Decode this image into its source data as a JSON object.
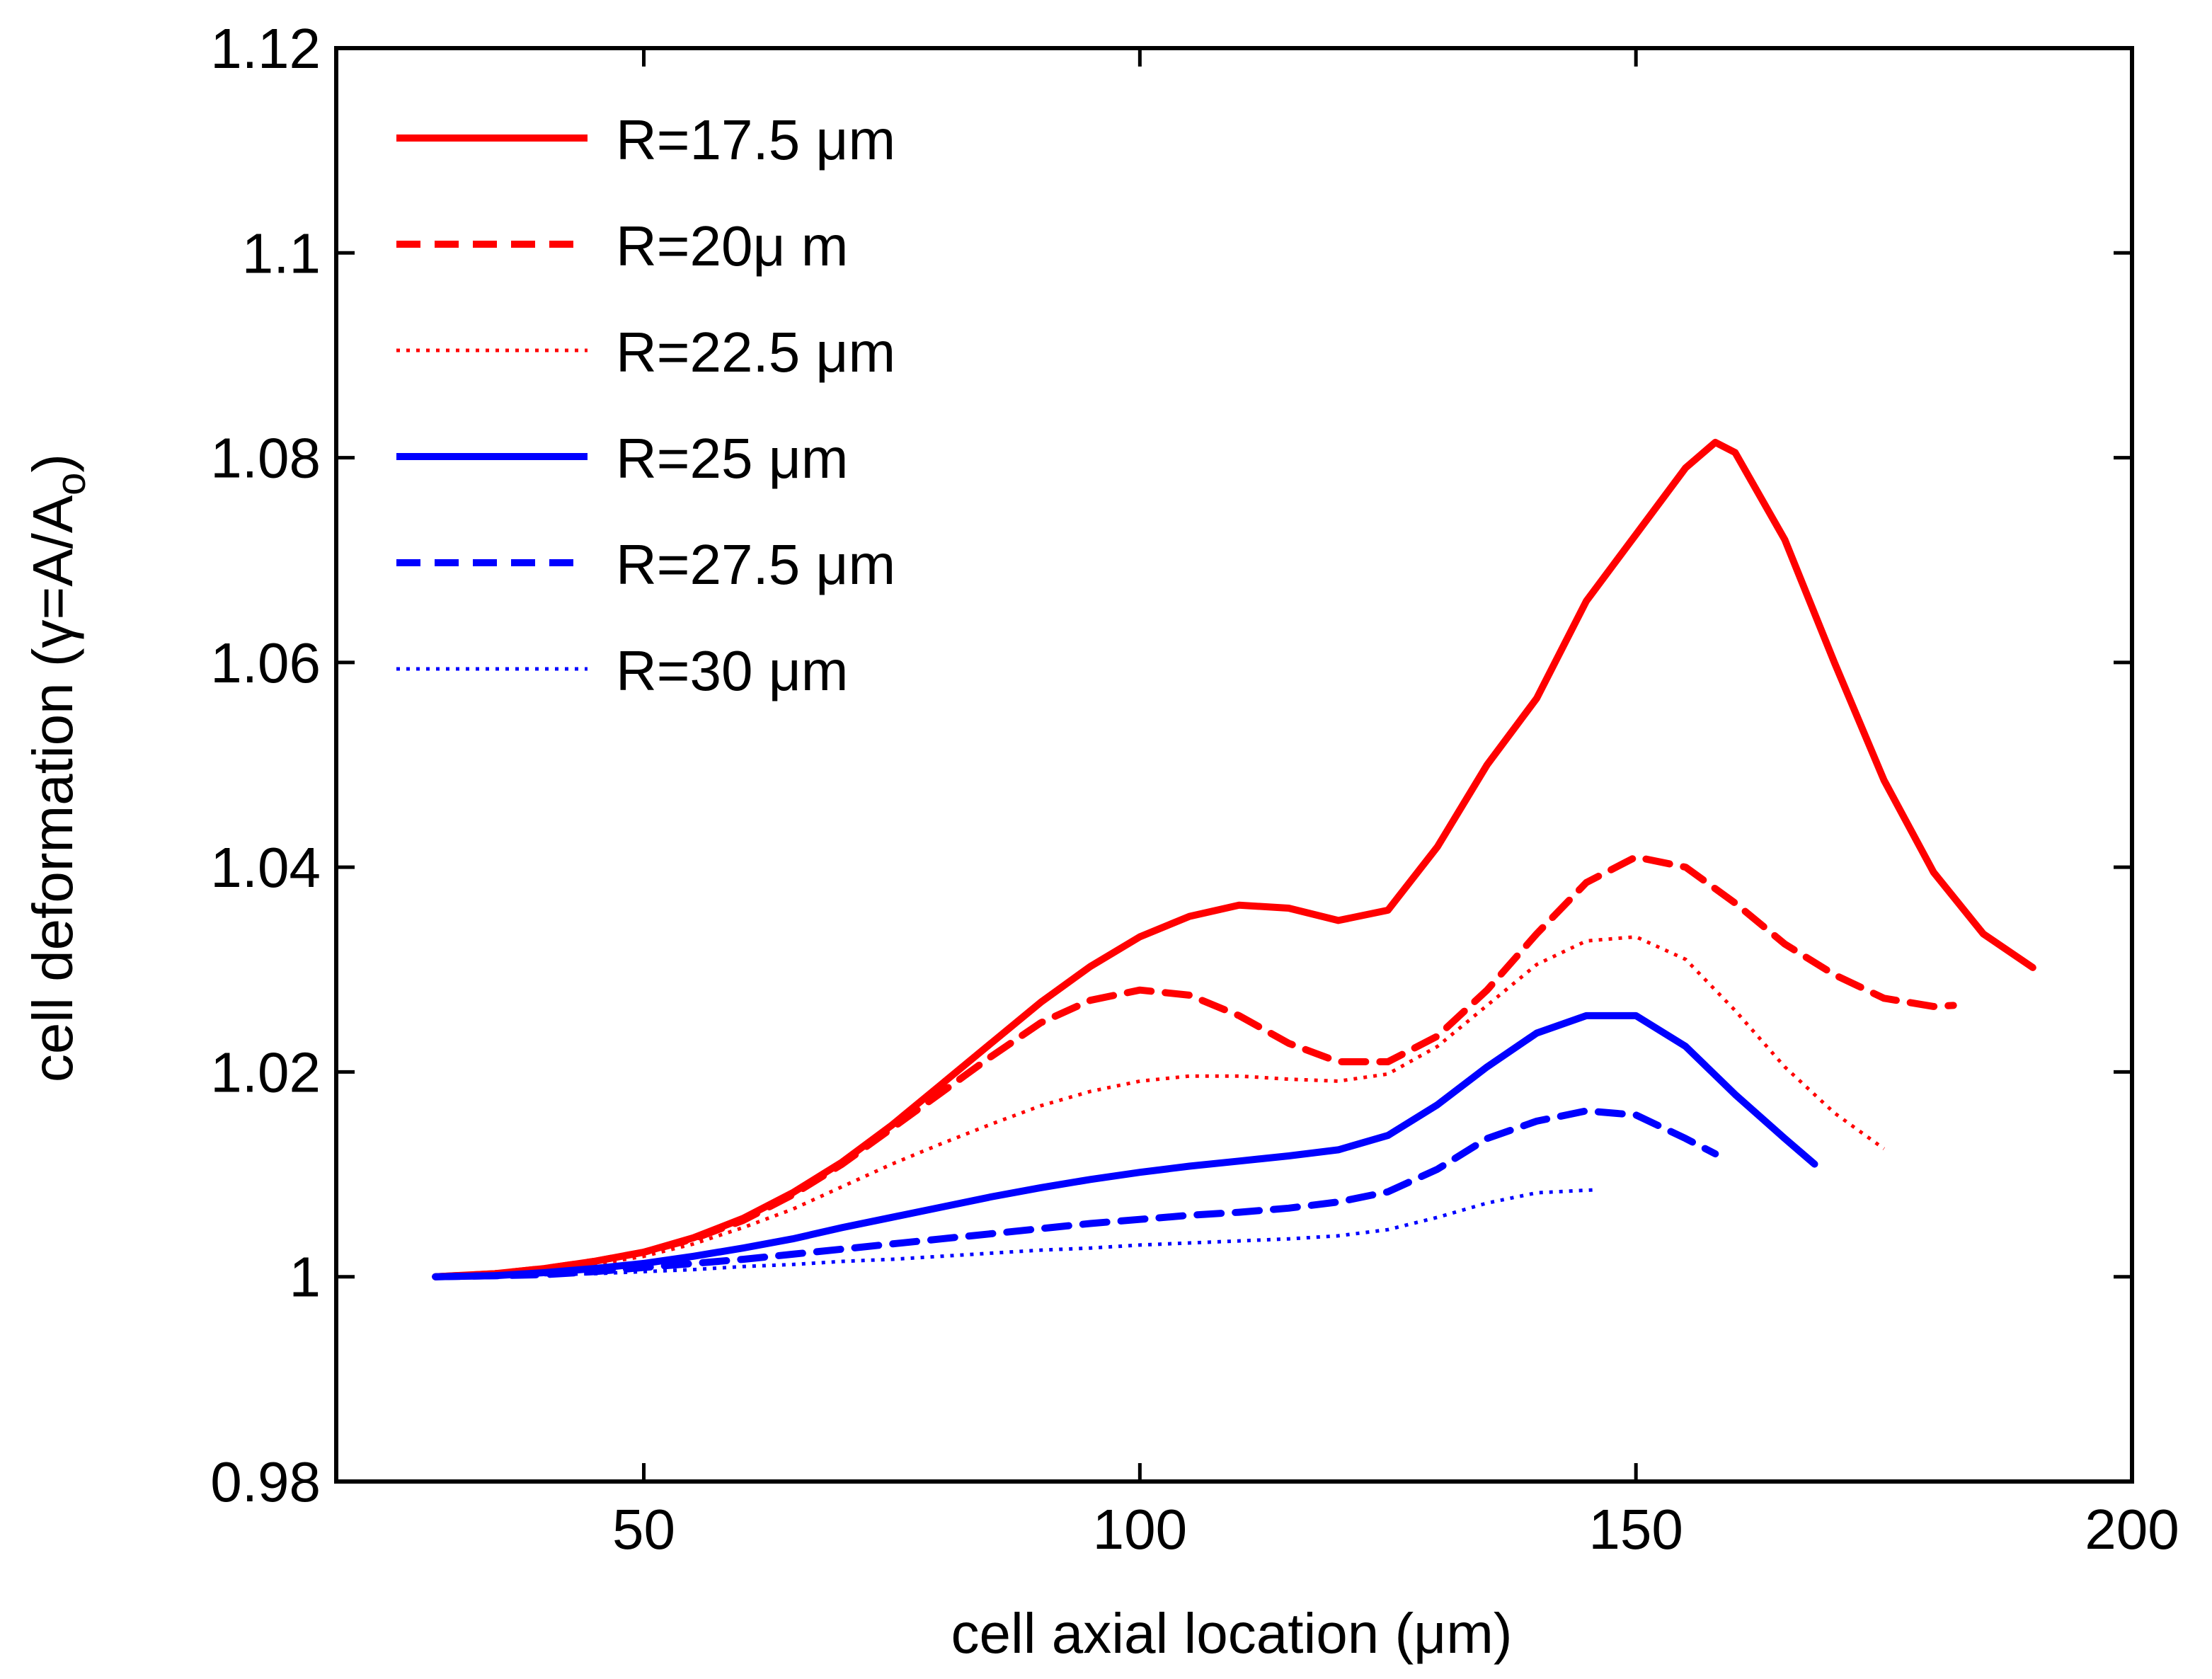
{
  "chart_data": {
    "type": "line",
    "title": "",
    "xlabel": "cell axial location (μm)",
    "ylabel": "cell deformation (γ=A/A",
    "ylabel_subscript": "o",
    "ylabel_close": ")",
    "xlim": [
      19,
      200
    ],
    "ylim": [
      0.98,
      1.12
    ],
    "xticks": [
      50,
      100,
      150,
      200
    ],
    "yticks": [
      0.98,
      1,
      1.02,
      1.04,
      1.06,
      1.08,
      1.1,
      1.12
    ],
    "xtick_labels": [
      "50",
      "100",
      "150",
      "200"
    ],
    "ytick_labels": [
      "0.98",
      "1",
      "1.02",
      "1.04",
      "1.06",
      "1.08",
      "1.1",
      "1.12"
    ],
    "grid": false,
    "legend_position": "top-left",
    "series": [
      {
        "name": "R=17.5 μm",
        "color": "#ff0000",
        "style": "solid",
        "x": [
          29,
          35,
          40,
          45,
          50,
          55,
          60,
          65,
          70,
          75,
          80,
          85,
          90,
          95,
          100,
          105,
          110,
          115,
          120,
          125,
          130,
          135,
          140,
          145,
          150,
          155,
          158,
          160,
          165,
          170,
          175,
          180,
          185,
          190
        ],
        "y": [
          1.0,
          1.0003,
          1.0008,
          1.0015,
          1.0024,
          1.0038,
          1.0057,
          1.0082,
          1.0112,
          1.0148,
          1.0188,
          1.0228,
          1.0268,
          1.0303,
          1.0332,
          1.0352,
          1.0363,
          1.036,
          1.0348,
          1.0358,
          1.042,
          1.05,
          1.0565,
          1.066,
          1.0725,
          1.079,
          1.0815,
          1.0805,
          1.072,
          1.06,
          1.0485,
          1.0395,
          1.0335,
          1.0302
        ]
      },
      {
        "name": "R=20μ m",
        "color": "#ff0000",
        "style": "dashed",
        "x": [
          29,
          35,
          40,
          45,
          50,
          55,
          60,
          65,
          70,
          75,
          80,
          85,
          90,
          95,
          100,
          105,
          110,
          115,
          120,
          125,
          130,
          135,
          140,
          145,
          150,
          155,
          160,
          165,
          170,
          175,
          180,
          182
        ],
        "y": [
          1.0,
          1.0003,
          1.0008,
          1.0015,
          1.0024,
          1.0037,
          1.0055,
          1.008,
          1.011,
          1.0145,
          1.018,
          1.0215,
          1.0248,
          1.027,
          1.028,
          1.0275,
          1.0255,
          1.0228,
          1.021,
          1.021,
          1.0235,
          1.028,
          1.0335,
          1.0385,
          1.041,
          1.04,
          1.0365,
          1.0325,
          1.0295,
          1.0272,
          1.0264,
          1.0265
        ]
      },
      {
        "name": "R=22.5 μm",
        "color": "#ff0000",
        "style": "dotted",
        "x": [
          29,
          35,
          40,
          45,
          50,
          55,
          60,
          65,
          70,
          75,
          80,
          85,
          90,
          95,
          100,
          105,
          110,
          115,
          120,
          125,
          130,
          135,
          140,
          145,
          150,
          155,
          160,
          165,
          170,
          175
        ],
        "y": [
          1.0,
          1.0002,
          1.0006,
          1.0012,
          1.002,
          1.0032,
          1.0048,
          1.0066,
          1.0088,
          1.011,
          1.013,
          1.0149,
          1.0167,
          1.0181,
          1.0191,
          1.0196,
          1.0196,
          1.0193,
          1.0191,
          1.0198,
          1.0225,
          1.0265,
          1.0305,
          1.0328,
          1.0332,
          1.031,
          1.026,
          1.0205,
          1.016,
          1.0125
        ]
      },
      {
        "name": "R=25 μm",
        "color": "#0000ff",
        "style": "solid",
        "x": [
          29,
          35,
          40,
          45,
          50,
          55,
          60,
          65,
          70,
          75,
          80,
          85,
          90,
          95,
          100,
          105,
          110,
          115,
          120,
          125,
          130,
          135,
          140,
          145,
          150,
          155,
          160,
          165,
          168
        ],
        "y": [
          1.0,
          1.0001,
          1.0004,
          1.0008,
          1.0013,
          1.002,
          1.0028,
          1.0037,
          1.0048,
          1.0058,
          1.0068,
          1.0078,
          1.0087,
          1.0095,
          1.0102,
          1.0108,
          1.0113,
          1.0118,
          1.0124,
          1.0138,
          1.0168,
          1.0205,
          1.0238,
          1.0255,
          1.0255,
          1.0225,
          1.0178,
          1.0135,
          1.011
        ]
      },
      {
        "name": "R=27.5 μm",
        "color": "#0000ff",
        "style": "dashed",
        "x": [
          29,
          35,
          40,
          45,
          50,
          55,
          60,
          65,
          70,
          75,
          80,
          85,
          90,
          95,
          100,
          105,
          110,
          115,
          120,
          125,
          130,
          135,
          140,
          145,
          150,
          155,
          158
        ],
        "y": [
          1.0,
          1.0001,
          1.0002,
          1.0005,
          1.0009,
          1.0013,
          1.0017,
          1.0022,
          1.0027,
          1.0032,
          1.0037,
          1.0042,
          1.0047,
          1.0052,
          1.0056,
          1.006,
          1.0063,
          1.0067,
          1.0073,
          1.0083,
          1.0105,
          1.0135,
          1.0152,
          1.0162,
          1.0158,
          1.0135,
          1.012
        ]
      },
      {
        "name": "R=30 μm",
        "color": "#0000ff",
        "style": "dotted",
        "x": [
          29,
          35,
          40,
          45,
          50,
          55,
          60,
          65,
          70,
          75,
          80,
          85,
          90,
          95,
          100,
          105,
          110,
          115,
          120,
          125,
          130,
          135,
          140,
          146
        ],
        "y": [
          1.0,
          1.0001,
          1.0002,
          1.0003,
          1.0005,
          1.0007,
          1.001,
          1.0012,
          1.0015,
          1.0017,
          1.002,
          1.0023,
          1.0026,
          1.0028,
          1.0031,
          1.0033,
          1.0035,
          1.0037,
          1.004,
          1.0046,
          1.0058,
          1.0072,
          1.0082,
          1.0085
        ]
      }
    ]
  }
}
